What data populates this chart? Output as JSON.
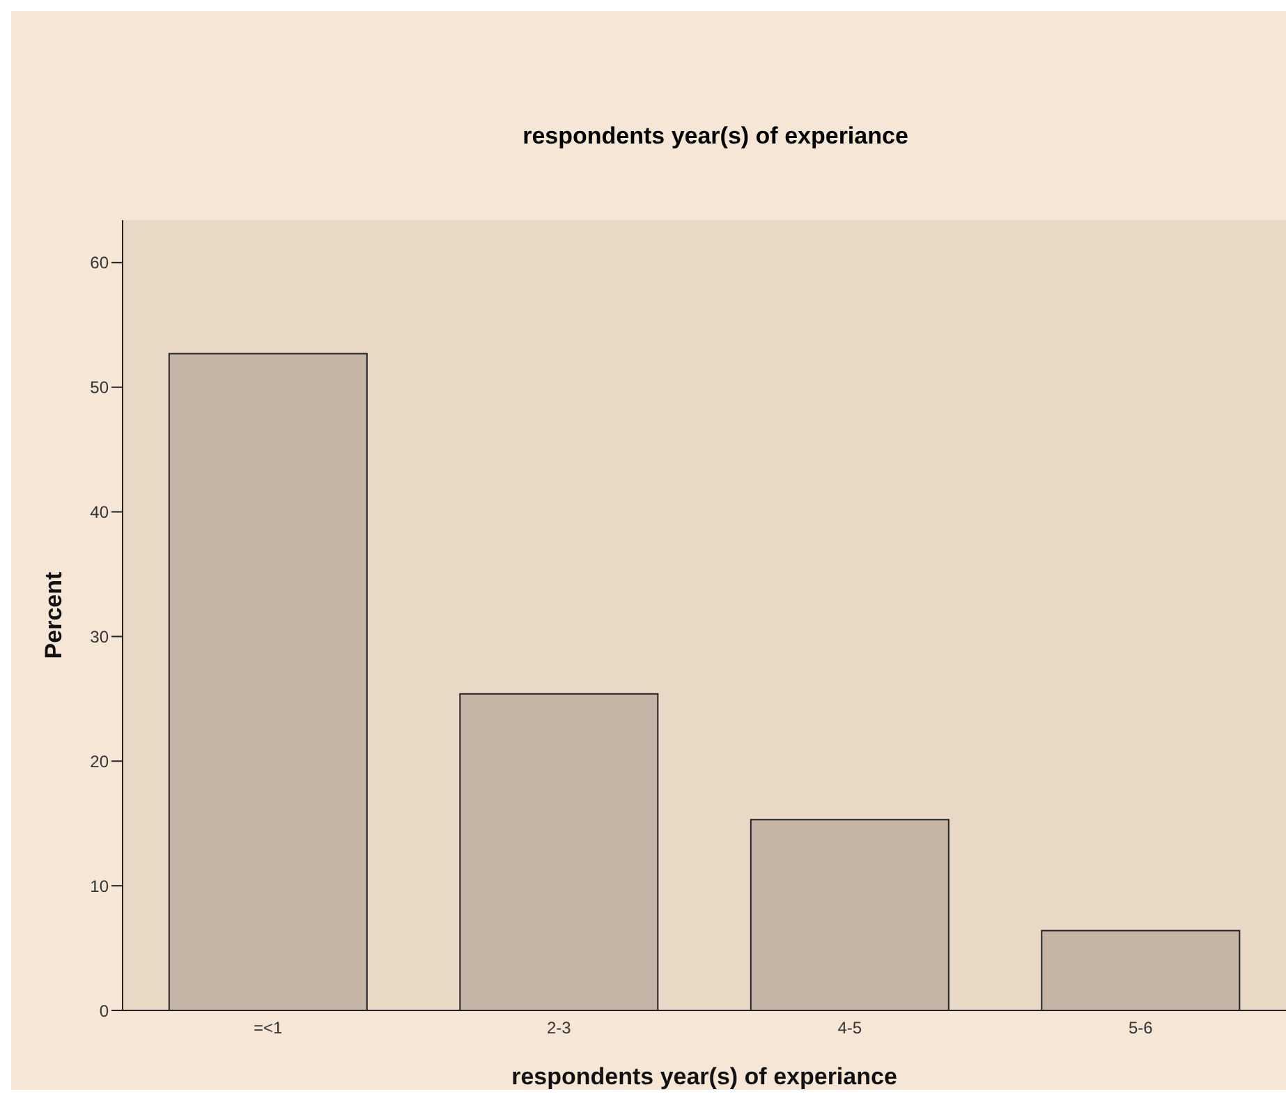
{
  "chart_data": {
    "type": "bar",
    "title": "respondents year(s) of experiance",
    "xlabel": "respondents year(s) of experiance",
    "ylabel": "Percent",
    "categories": [
      "=<1",
      "2-3",
      "4-5",
      "5-6"
    ],
    "values": [
      52.7,
      25.4,
      15.3,
      6.4
    ],
    "color": "#c4b5a6",
    "ylim": [
      0,
      63.4
    ],
    "yticks": [
      0,
      10,
      20,
      30,
      40,
      50,
      60
    ],
    "grid": false
  }
}
